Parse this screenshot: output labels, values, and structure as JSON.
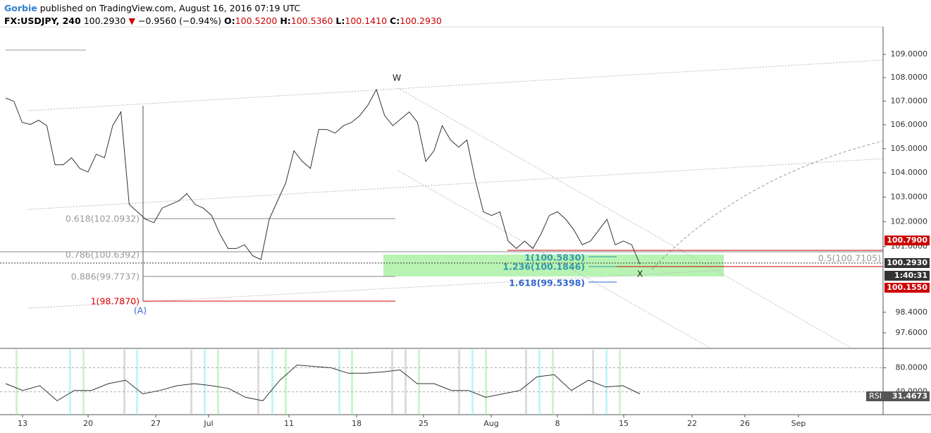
{
  "header": {
    "author": "Gorbie",
    "published": "published on TradingView.com, August 16, 2016 07:19 UTC",
    "symbol": "FX:USDJPY, 240",
    "last": "100.2930",
    "arrow": "▼",
    "change": "−0.9560 (−0.94%)",
    "o_label": "O:",
    "o": "100.5200",
    "h_label": "H:",
    "h": "100.5360",
    "l_label": "L:",
    "l": "100.1410",
    "c_label": "C:",
    "c": "100.2930"
  },
  "annotations": {
    "w": "W",
    "x": "X",
    "a": "(A)",
    "fib_0618": "0.618(102.0932)",
    "fib_0786": "0.786(100.6392)",
    "fib_0886": "0.886(99.7737)",
    "fib_1": "1(98.7870)",
    "ext_1": "1(100.5830)",
    "ext_1236": "1.236(100.1846)",
    "ext_1618": "1.618(99.5398)",
    "half": "0.5(100.7105)"
  },
  "price_tags": [
    "100.7900",
    "100.2930",
    "1:40:31",
    "100.1550"
  ],
  "rsi_label": "RSI",
  "rsi_last": "31.4673",
  "chart_data": [
    {
      "type": "line",
      "color": "#333333",
      "log_scale": true,
      "xticks": [
        "13",
        "20",
        "27",
        "Jul",
        "11",
        "18",
        "25",
        "Aug",
        "8",
        "15",
        "22",
        "26",
        "Sep"
      ],
      "ylim": [
        97.0,
        110.2
      ],
      "yticks": [
        {
          "value": 97.6,
          "label": "97.6000"
        },
        {
          "value": 98.4,
          "label": "98.4000"
        },
        {
          "value": 101,
          "label": "101.0000"
        },
        {
          "value": 102,
          "label": "102.0000"
        },
        {
          "value": 103,
          "label": "103.0000"
        },
        {
          "value": 104,
          "label": "104.0000"
        },
        {
          "value": 105,
          "label": "105.0000"
        },
        {
          "value": 106,
          "label": "106.0000"
        },
        {
          "value": 107,
          "label": "107.0000"
        },
        {
          "value": 108,
          "label": "108.0000"
        },
        {
          "value": 109,
          "label": "109.0000"
        }
      ],
      "values": [
        107.13,
        106.99,
        106.1,
        106.01,
        106.19,
        105.96,
        104.33,
        104.33,
        104.62,
        104.18,
        104.03,
        104.77,
        104.62,
        105.96,
        106.54,
        102.7,
        102.4,
        102.1,
        101.96,
        102.55,
        102.7,
        102.84,
        103.14,
        102.7,
        102.55,
        102.25,
        101.51,
        100.92,
        100.92,
        101.07,
        100.63,
        100.48,
        102.1,
        102.84,
        103.58,
        104.91,
        104.47,
        104.18,
        105.8,
        105.8,
        105.65,
        105.96,
        106.1,
        106.39,
        106.84,
        107.49,
        106.39,
        105.96,
        106.25,
        106.54,
        106.1,
        104.47,
        104.91,
        105.96,
        105.36,
        105.06,
        105.36,
        103.73,
        102.4,
        102.25,
        102.4,
        101.22,
        100.92,
        101.22,
        100.92,
        101.51,
        102.25,
        102.4,
        102.1,
        101.66,
        101.07,
        101.22,
        101.66,
        102.1,
        101.07,
        101.22,
        101.07,
        100.29
      ]
    },
    {
      "type": "line",
      "color": "#333333",
      "ylim": [
        2,
        110
      ],
      "yticks": [
        {
          "value": 80,
          "label": "80.0000"
        },
        {
          "value": 40,
          "label": "40.0000"
        }
      ],
      "values": [
        53.7,
        42.3,
        50.3,
        25.1,
        42.3,
        42.3,
        53.7,
        59.4,
        36.6,
        42.3,
        50.3,
        53.7,
        50.3,
        45.7,
        30.9,
        25.1,
        59.4,
        84.6,
        82.3,
        80,
        70.9,
        70.9,
        73.1,
        76.6,
        53.7,
        53.7,
        42.3,
        42.3,
        30.9,
        36.6,
        42.3,
        65.1,
        68.6,
        42.3,
        59.4,
        48,
        50.3,
        36.6
      ]
    }
  ]
}
